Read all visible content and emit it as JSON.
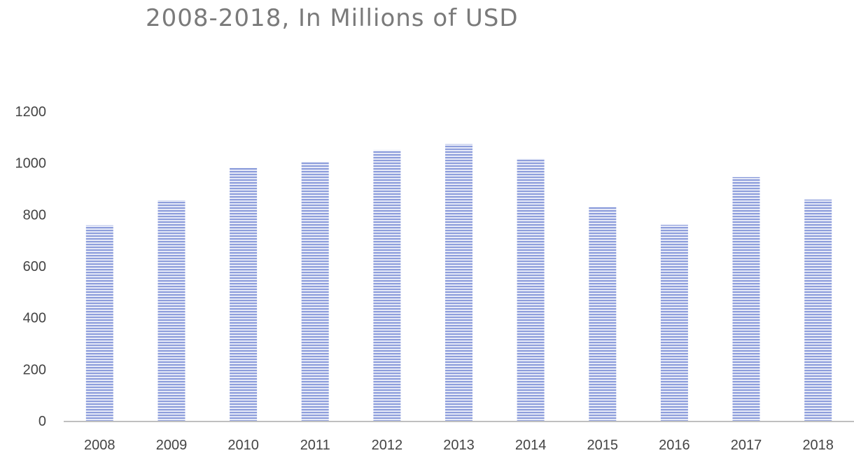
{
  "chart_data": {
    "type": "bar",
    "title": "2008-2018, In Millions of USD",
    "xlabel": "",
    "ylabel": "",
    "categories": [
      "2008",
      "2009",
      "2010",
      "2011",
      "2012",
      "2013",
      "2014",
      "2015",
      "2016",
      "2017",
      "2018"
    ],
    "values": [
      758,
      855,
      980,
      1003,
      1050,
      1073,
      1017,
      828,
      760,
      945,
      858
    ],
    "ylim": [
      0,
      1200
    ],
    "yticks": [
      0,
      200,
      400,
      600,
      800,
      1000,
      1200
    ],
    "grid": false,
    "legend": "none",
    "bar_color": "#8f9fdc",
    "bar_stripe_color": "#ffffff",
    "axis_color": "#bfbfbf"
  }
}
